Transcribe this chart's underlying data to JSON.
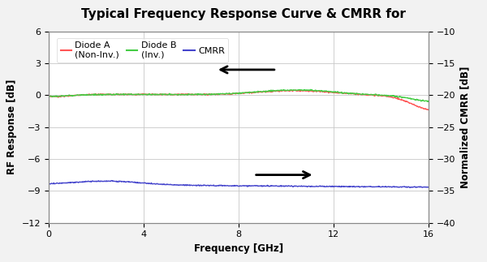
{
  "title": "Typical Frequency Response Curve & CMRR for",
  "xlabel": "Frequency [GHz]",
  "ylabel_left": "RF Response [dB]",
  "ylabel_right": "Normalized CMRR [dB]",
  "xlim": [
    0,
    16
  ],
  "ylim_left": [
    -12,
    6
  ],
  "ylim_right": [
    -40,
    -10
  ],
  "xticks": [
    0,
    4,
    8,
    12,
    16
  ],
  "yticks_left": [
    -12,
    -9,
    -6,
    -3,
    0,
    3,
    6
  ],
  "yticks_right": [
    -40,
    -35,
    -30,
    -25,
    -20,
    -15,
    -10
  ],
  "diode_a_color": "#FF5555",
  "diode_b_color": "#44CC44",
  "cmrr_color": "#4444CC",
  "background_color": "#ffffff",
  "plot_bg_color": "#ffffff",
  "outer_bg_color": "#f2f2f2",
  "grid_color": "#c8c8c8",
  "title_fontsize": 11,
  "label_fontsize": 8.5,
  "tick_fontsize": 8,
  "legend_fontsize": 8
}
